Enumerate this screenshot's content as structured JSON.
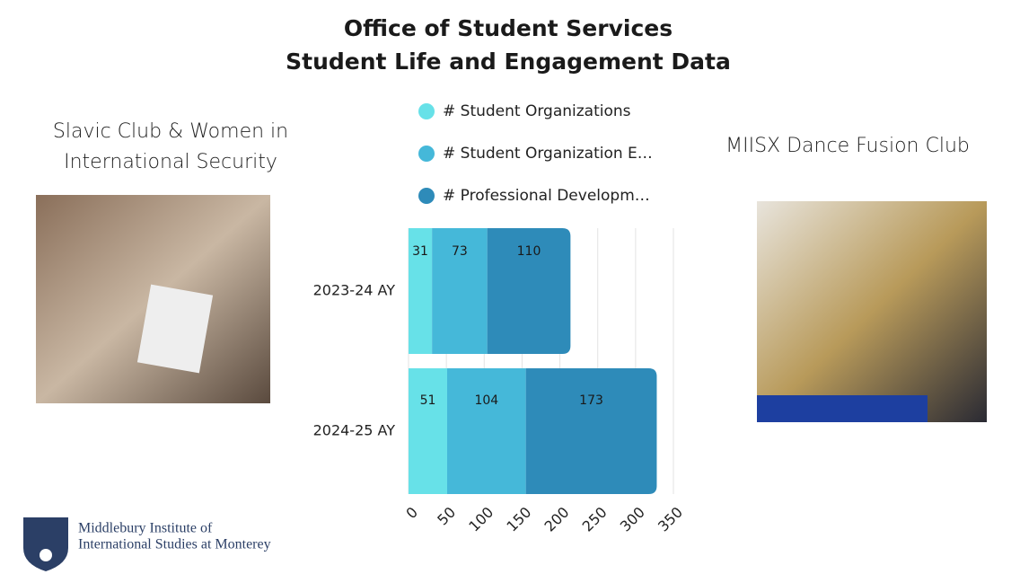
{
  "header": {
    "title_lines": [
      "Office of Student Services",
      "Student Life and Engagement Data"
    ]
  },
  "left_caption": [
    "Slavic Club & Women in",
    "International Security"
  ],
  "right_caption": "MIISX Dance Fusion Club",
  "logo": [
    "Middlebury Institute of",
    "International Studies at Monterey"
  ],
  "chart_data": {
    "type": "bar",
    "orientation": "horizontal",
    "stacked": true,
    "categories": [
      "2023-24 AY",
      "2024-25 AY"
    ],
    "series": [
      {
        "name": "# Student Organizations",
        "color": "#67e1e8",
        "values": [
          31,
          51
        ]
      },
      {
        "name": "# Student Organization E…",
        "color": "#45b8d9",
        "values": [
          73,
          104
        ]
      },
      {
        "name": "# Professional Developm…",
        "color": "#2e8bb9",
        "values": [
          110,
          173
        ]
      }
    ],
    "xlim": [
      0,
      350
    ],
    "xticks": [
      0,
      50,
      100,
      150,
      200,
      250,
      300,
      350
    ],
    "grid": true
  }
}
